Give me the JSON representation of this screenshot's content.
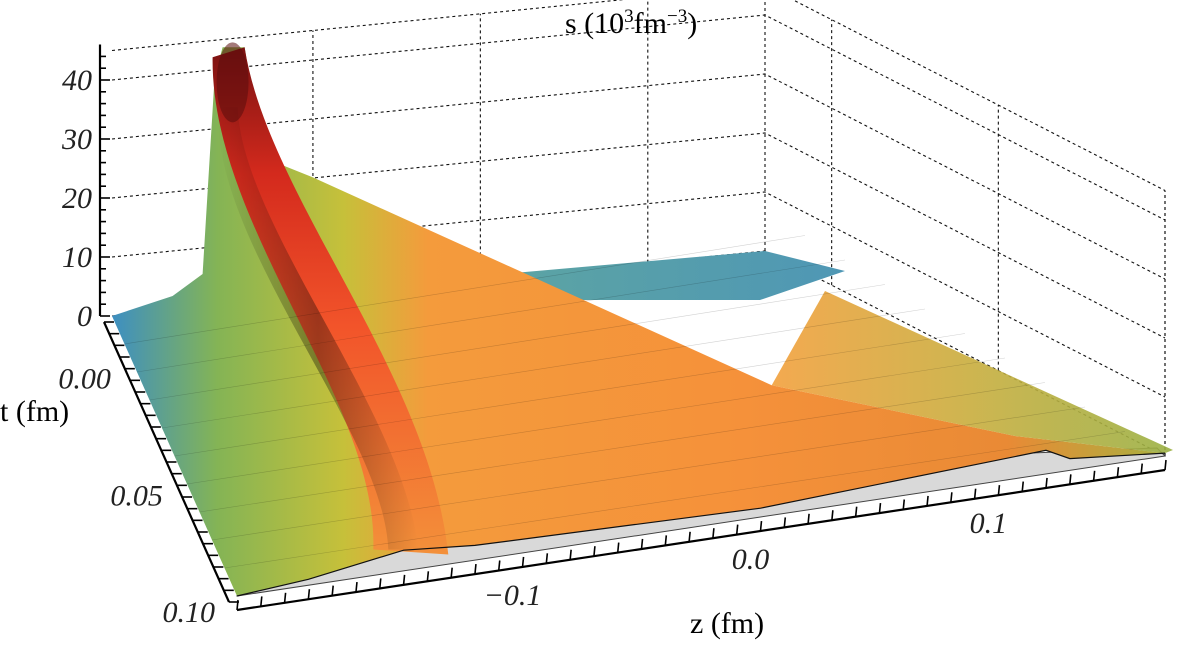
{
  "chart_data": {
    "type": "surface3d",
    "title": "s (10³fm⁻³)",
    "axes": {
      "vertical": {
        "label_parts": [
          "s (10",
          "3",
          "fm",
          "−3",
          ")"
        ],
        "range": [
          0,
          45
        ],
        "ticks": [
          {
            "value": 0,
            "label": "0"
          },
          {
            "value": 10,
            "label": "10"
          },
          {
            "value": 20,
            "label": "20"
          },
          {
            "value": 30,
            "label": "30"
          },
          {
            "value": 40,
            "label": "40"
          }
        ]
      },
      "t": {
        "label": "t (fm)",
        "range": [
          -0.02,
          0.1
        ],
        "ticks": [
          {
            "value": 0.0,
            "label": "0.00"
          },
          {
            "value": 0.05,
            "label": "0.05"
          },
          {
            "value": 0.1,
            "label": "0.10"
          }
        ]
      },
      "z": {
        "label": "z (fm)",
        "range": [
          -0.22,
          0.17
        ],
        "ticks": [
          {
            "value": -0.1,
            "label": "−0.1"
          },
          {
            "value": 0.0,
            "label": "0.0"
          },
          {
            "value": 0.1,
            "label": "0.1"
          }
        ]
      }
    },
    "surface": {
      "peak": {
        "z": -0.148,
        "t": -0.02,
        "s": 43.5
      },
      "front_edge_t": 0.1,
      "front_edge_profile": [
        {
          "z": -0.22,
          "s": 0.0
        },
        {
          "z": -0.19,
          "s": 1.0
        },
        {
          "z": -0.15,
          "s": 3.5
        },
        {
          "z": -0.12,
          "s": 2.5
        },
        {
          "z": 0.0,
          "s": 1.5
        },
        {
          "z": 0.12,
          "s": 4.0
        },
        {
          "z": 0.13,
          "s": 2.0
        },
        {
          "z": 0.17,
          "s": 0.5
        }
      ],
      "baseline_s": 0
    },
    "colormap": [
      "#3a8dc4",
      "#7fb25a",
      "#c9c23a",
      "#f3a23c",
      "#f26e2e",
      "#ea2f22",
      "#6e1010"
    ],
    "grid": true
  }
}
